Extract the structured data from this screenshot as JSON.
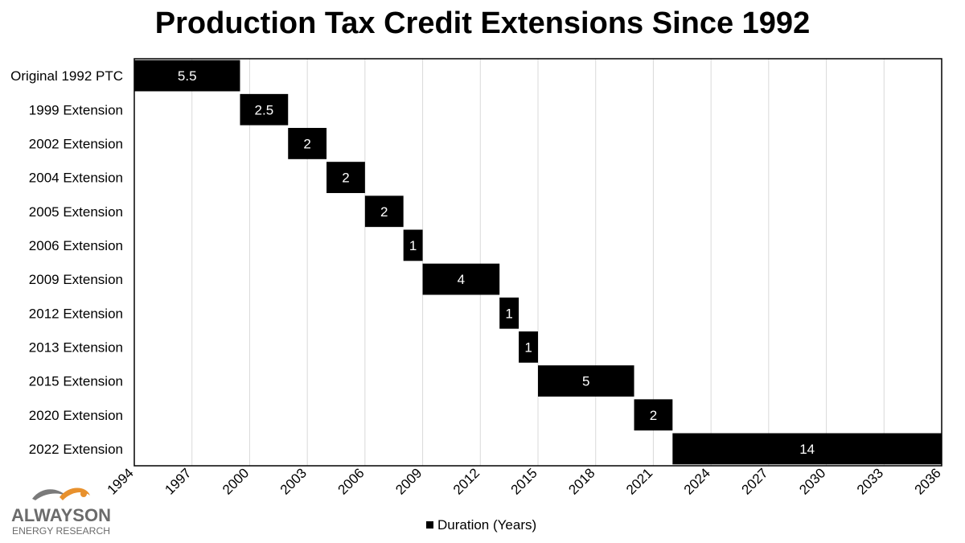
{
  "chart_data": {
    "type": "bar",
    "subtype": "horizontal-gantt",
    "title": "Production Tax Credit Extensions Since 1992",
    "xlabel": "",
    "ylabel": "",
    "legend": {
      "label": "Duration (Years)",
      "position": "bottom"
    },
    "xlim": [
      1994,
      2036
    ],
    "xticks": [
      "1994",
      "1997",
      "2000",
      "2003",
      "2006",
      "2009",
      "2012",
      "2015",
      "2018",
      "2021",
      "2024",
      "2027",
      "2030",
      "2033",
      "2036"
    ],
    "grid": true,
    "series": [
      {
        "name": "Duration (Years)",
        "color": "#000000",
        "items": [
          {
            "category": "Original 1992 PTC",
            "start": 1994,
            "value": 5.5,
            "label": "5.5"
          },
          {
            "category": "1999 Extension",
            "start": 1999.5,
            "value": 2.5,
            "label": "2.5"
          },
          {
            "category": "2002 Extension",
            "start": 2002,
            "value": 2,
            "label": "2"
          },
          {
            "category": "2004 Extension",
            "start": 2004,
            "value": 2,
            "label": "2"
          },
          {
            "category": "2005 Extension",
            "start": 2006,
            "value": 2,
            "label": "2"
          },
          {
            "category": "2006 Extension",
            "start": 2008,
            "value": 1,
            "label": "1"
          },
          {
            "category": "2009 Extension",
            "start": 2009,
            "value": 4,
            "label": "4"
          },
          {
            "category": "2012 Extension",
            "start": 2013,
            "value": 1,
            "label": "1"
          },
          {
            "category": "2013 Extension",
            "start": 2014,
            "value": 1,
            "label": "1"
          },
          {
            "category": "2015 Extension",
            "start": 2015,
            "value": 5,
            "label": "5"
          },
          {
            "category": "2020 Extension",
            "start": 2020,
            "value": 2,
            "label": "2"
          },
          {
            "category": "2022 Extension",
            "start": 2022,
            "value": 14,
            "label": "14"
          }
        ]
      }
    ]
  },
  "logo": {
    "text_top": "ALWAYSON",
    "text_bottom": "ENERGY RESEARCH",
    "color_gray": "#6b6b6b",
    "color_orange": "#e8912d"
  }
}
